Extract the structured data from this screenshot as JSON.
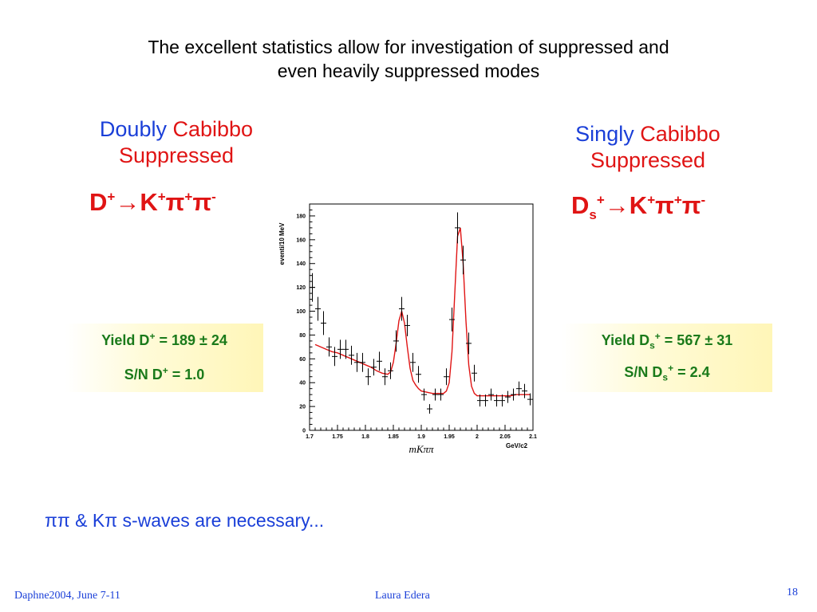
{
  "slide": {
    "title_line1": "The excellent statistics allow for investigation of suppressed and",
    "title_line2": "even heavily suppressed modes"
  },
  "left": {
    "label_word1": "Doubly",
    "label_word2": "Cabibbo",
    "label_word3": "Suppressed",
    "decay": {
      "d": "D",
      "d_sup": "+",
      "arrow": "→",
      "k": "K",
      "k_sup": "+",
      "pi1": "π",
      "pi1_sup": "+",
      "pi2": "π",
      "pi2_sup": "-"
    },
    "yield_prefix": "Yield D",
    "yield_sup": "+",
    "yield_value": " = 189 ± 24",
    "sn_prefix": "S/N D",
    "sn_sup": "+",
    "sn_value": " = 1.0"
  },
  "right": {
    "label_word1": "Singly",
    "label_word2": "Cabibbo",
    "label_word3": "Suppressed",
    "decay": {
      "d": "D",
      "d_sub": "s",
      "d_sup": "+",
      "arrow": "→",
      "k": "K",
      "k_sup": "+",
      "pi1": "π",
      "pi1_sup": "+",
      "pi2": "π",
      "pi2_sup": "-"
    },
    "yield_prefix": "Yield D",
    "yield_sub": "s",
    "yield_sup": "+",
    "yield_value": " = 567 ± 31",
    "sn_prefix": "S/N D",
    "sn_sub": "s",
    "sn_sup": "+",
    "sn_value": " = 2.4"
  },
  "note": "ππ & Kπ s-waves are necessary...",
  "footer": {
    "left": "Daphne2004, June 7-11",
    "center": "Laura Edera",
    "page": "18"
  },
  "chart_data": {
    "type": "scatter",
    "ylabel": "eventi/10 MeV",
    "xlabel": "mKππ",
    "x_unit": "GeV/c2",
    "xlim": [
      1.7,
      2.1
    ],
    "ylim": [
      0,
      190
    ],
    "x_ticks": [
      "1.7",
      "1.75",
      "1.8",
      "1.85",
      "1.9",
      "1.95",
      "2",
      "2.05",
      "2.1"
    ],
    "y_ticks": [
      "0",
      "20",
      "40",
      "60",
      "80",
      "100",
      "120",
      "140",
      "160",
      "180"
    ],
    "series": [
      {
        "kind": "data_points",
        "x": [
          1.705,
          1.715,
          1.725,
          1.735,
          1.745,
          1.755,
          1.765,
          1.775,
          1.785,
          1.795,
          1.805,
          1.815,
          1.825,
          1.835,
          1.845,
          1.855,
          1.865,
          1.875,
          1.885,
          1.895,
          1.905,
          1.915,
          1.925,
          1.935,
          1.945,
          1.955,
          1.965,
          1.975,
          1.985,
          1.995,
          2.005,
          2.015,
          2.025,
          2.035,
          2.045,
          2.055,
          2.065,
          2.075,
          2.085,
          2.095
        ],
        "y": [
          120,
          102,
          90,
          70,
          62,
          68,
          68,
          63,
          57,
          57,
          45,
          53,
          58,
          45,
          50,
          75,
          102,
          88,
          57,
          47,
          30,
          18,
          30,
          30,
          45,
          93,
          170,
          143,
          73,
          48,
          25,
          25,
          30,
          25,
          25,
          28,
          30,
          35,
          33,
          26
        ],
        "y_err": [
          12,
          10,
          10,
          8,
          8,
          8,
          8,
          8,
          8,
          8,
          7,
          7,
          8,
          7,
          7,
          9,
          10,
          9,
          8,
          7,
          5,
          4,
          5,
          5,
          7,
          10,
          13,
          12,
          9,
          7,
          5,
          5,
          5,
          5,
          5,
          5,
          5,
          6,
          6,
          5
        ]
      },
      {
        "kind": "fit",
        "x": [
          1.71,
          1.72,
          1.73,
          1.74,
          1.75,
          1.76,
          1.77,
          1.78,
          1.79,
          1.8,
          1.81,
          1.82,
          1.83,
          1.84,
          1.845,
          1.85,
          1.855,
          1.86,
          1.865,
          1.87,
          1.875,
          1.88,
          1.885,
          1.89,
          1.895,
          1.9,
          1.91,
          1.92,
          1.93,
          1.94,
          1.945,
          1.95,
          1.955,
          1.96,
          1.965,
          1.97,
          1.975,
          1.98,
          1.985,
          1.99,
          1.995,
          2.0,
          2.01,
          2.02,
          2.03,
          2.04,
          2.05,
          2.06,
          2.07,
          2.08,
          2.09,
          2.095
        ],
        "y": [
          72,
          70,
          68,
          66,
          65,
          63,
          61,
          59,
          57,
          55,
          53,
          50,
          48,
          47,
          49,
          57,
          73,
          92,
          100,
          90,
          70,
          52,
          42,
          38,
          35,
          33,
          32,
          31,
          31,
          31,
          33,
          40,
          66,
          115,
          163,
          170,
          140,
          92,
          55,
          37,
          31,
          29,
          29,
          29,
          29,
          29,
          29,
          29,
          30,
          30,
          30,
          30
        ]
      }
    ]
  }
}
